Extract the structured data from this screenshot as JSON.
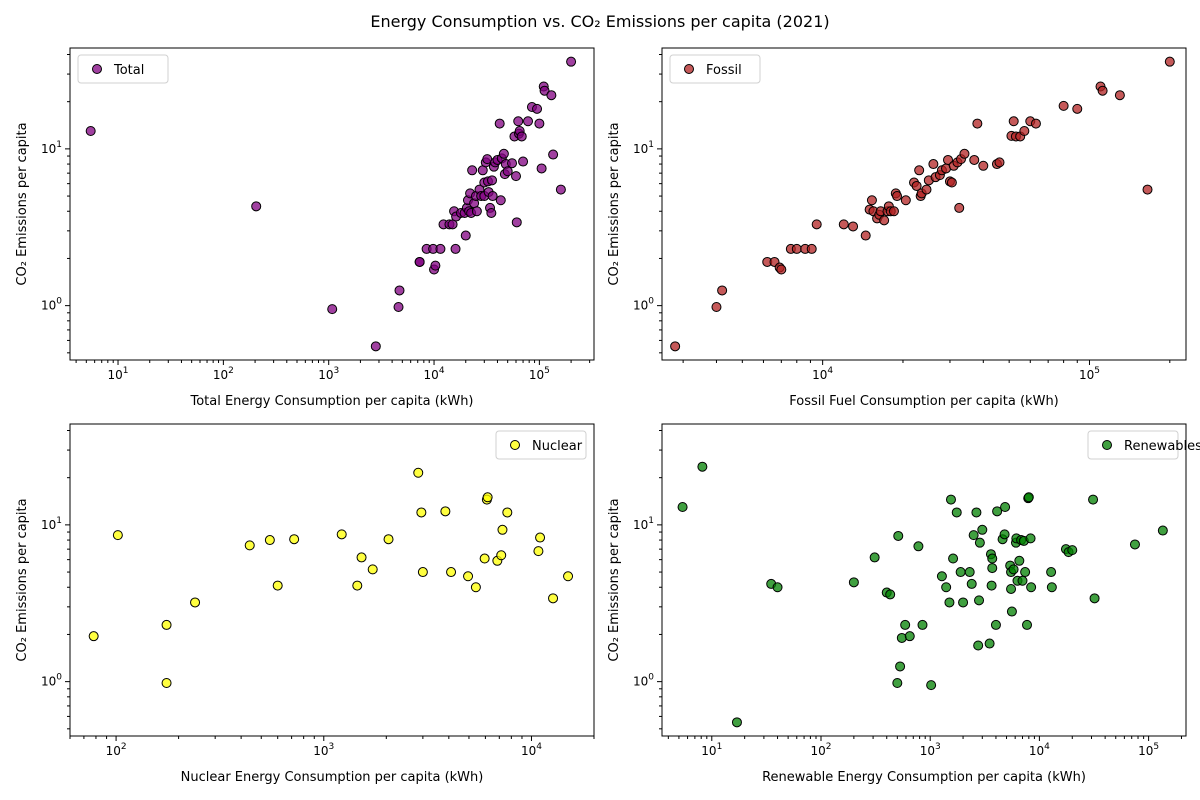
{
  "figure": {
    "suptitle": "Energy Consumption vs. CO₂ Emissions per capita (2021)"
  },
  "chart_data": [
    {
      "type": "scatter",
      "name": "Total",
      "color": "#800080",
      "xlabel": "Total Energy Consumption per capita (kWh)",
      "ylabel": "CO₂ Emissions per capita",
      "xscale": "log",
      "yscale": "log",
      "xlim": [
        3.5,
        330000
      ],
      "ylim": [
        0.45,
        44
      ],
      "legend": "upper left",
      "xticks": [
        10,
        100,
        1000,
        10000,
        100000
      ],
      "yticks": [
        1,
        10
      ],
      "points": [
        [
          5.5,
          13
        ],
        [
          205,
          4.3
        ],
        [
          1080,
          0.95
        ],
        [
          2800,
          0.55
        ],
        [
          4700,
          1.25
        ],
        [
          4600,
          0.98
        ],
        [
          7300,
          1.9
        ],
        [
          7300,
          1.9
        ],
        [
          8500,
          2.3
        ],
        [
          9800,
          2.3
        ],
        [
          10000,
          1.7
        ],
        [
          10300,
          1.8
        ],
        [
          11500,
          2.3
        ],
        [
          12300,
          3.3
        ],
        [
          14000,
          3.3
        ],
        [
          15000,
          3.3
        ],
        [
          15500,
          4
        ],
        [
          16000,
          2.3
        ],
        [
          16200,
          3.7
        ],
        [
          18000,
          3.9
        ],
        [
          19500,
          3.9
        ],
        [
          20000,
          2.8
        ],
        [
          20500,
          4.2
        ],
        [
          21000,
          4.7
        ],
        [
          21500,
          4
        ],
        [
          22000,
          5.2
        ],
        [
          22500,
          3.9
        ],
        [
          23000,
          7.3
        ],
        [
          24000,
          4.5
        ],
        [
          25000,
          5
        ],
        [
          25500,
          4
        ],
        [
          27000,
          5.5
        ],
        [
          28000,
          5
        ],
        [
          29000,
          7.3
        ],
        [
          30000,
          6.1
        ],
        [
          30000,
          5
        ],
        [
          31000,
          8.2
        ],
        [
          32000,
          8.6
        ],
        [
          32500,
          6.2
        ],
        [
          33000,
          5.3
        ],
        [
          34000,
          4.2
        ],
        [
          35000,
          3.9
        ],
        [
          35500,
          6.3
        ],
        [
          36000,
          5
        ],
        [
          37000,
          7.7
        ],
        [
          38000,
          8.2
        ],
        [
          40000,
          8.5
        ],
        [
          42000,
          14.5
        ],
        [
          43000,
          4.7
        ],
        [
          44000,
          8.7
        ],
        [
          46000,
          9.3
        ],
        [
          47000,
          6.9
        ],
        [
          48000,
          8
        ],
        [
          50000,
          7.2
        ],
        [
          55000,
          8.1
        ],
        [
          58000,
          12
        ],
        [
          60000,
          6.7
        ],
        [
          61000,
          3.4
        ],
        [
          63000,
          15
        ],
        [
          64000,
          12.5
        ],
        [
          65000,
          13
        ],
        [
          68000,
          12
        ],
        [
          70000,
          8.3
        ],
        [
          78000,
          15
        ],
        [
          85000,
          18.5
        ],
        [
          95000,
          18
        ],
        [
          100000,
          14.5
        ],
        [
          105000,
          7.5
        ],
        [
          110000,
          25
        ],
        [
          112000,
          23.5
        ],
        [
          130000,
          22
        ],
        [
          135000,
          9.2
        ],
        [
          160000,
          5.5
        ],
        [
          200000,
          36
        ]
      ]
    },
    {
      "type": "scatter",
      "name": "Fossil",
      "color": "#b22222",
      "xlabel": "Fossil Fuel Consumption per capita (kWh)",
      "ylabel": "CO₂ Emissions per capita",
      "xscale": "log",
      "yscale": "log",
      "xlim": [
        2500,
        230000
      ],
      "ylim": [
        0.45,
        44
      ],
      "legend": "upper left",
      "xticks": [
        10000,
        100000
      ],
      "yticks": [
        1,
        10
      ],
      "points": [
        [
          2800,
          0.55
        ],
        [
          4000,
          0.98
        ],
        [
          4200,
          1.25
        ],
        [
          6200,
          1.9
        ],
        [
          6600,
          1.9
        ],
        [
          6900,
          1.75
        ],
        [
          7000,
          1.7
        ],
        [
          7600,
          2.3
        ],
        [
          8000,
          2.3
        ],
        [
          8600,
          2.3
        ],
        [
          9100,
          2.3
        ],
        [
          9500,
          3.3
        ],
        [
          12000,
          3.3
        ],
        [
          13000,
          3.2
        ],
        [
          14500,
          2.8
        ],
        [
          15000,
          4.1
        ],
        [
          15300,
          4.7
        ],
        [
          15500,
          4
        ],
        [
          16000,
          3.6
        ],
        [
          16300,
          3.8
        ],
        [
          16500,
          4
        ],
        [
          17000,
          3.5
        ],
        [
          17500,
          4
        ],
        [
          17700,
          4.3
        ],
        [
          18000,
          4
        ],
        [
          18500,
          4
        ],
        [
          18800,
          5.2
        ],
        [
          19000,
          5
        ],
        [
          20500,
          4.7
        ],
        [
          22000,
          6.1
        ],
        [
          22500,
          5.8
        ],
        [
          23000,
          7.3
        ],
        [
          23300,
          5
        ],
        [
          23500,
          5.2
        ],
        [
          24500,
          5.5
        ],
        [
          25000,
          6.3
        ],
        [
          26000,
          8
        ],
        [
          26500,
          6.6
        ],
        [
          27500,
          6.8
        ],
        [
          28000,
          7.3
        ],
        [
          29000,
          7.5
        ],
        [
          29500,
          8.5
        ],
        [
          30000,
          6.2
        ],
        [
          30500,
          6.1
        ],
        [
          31000,
          7.8
        ],
        [
          32000,
          8.2
        ],
        [
          32500,
          4.2
        ],
        [
          33000,
          8.6
        ],
        [
          34000,
          9.3
        ],
        [
          37000,
          8.5
        ],
        [
          38000,
          14.5
        ],
        [
          40000,
          7.8
        ],
        [
          45000,
          8
        ],
        [
          46000,
          8.2
        ],
        [
          51000,
          12.1
        ],
        [
          52000,
          15
        ],
        [
          53000,
          12
        ],
        [
          55000,
          12
        ],
        [
          57000,
          13
        ],
        [
          60000,
          15
        ],
        [
          63000,
          14.5
        ],
        [
          80000,
          18.8
        ],
        [
          90000,
          18
        ],
        [
          110000,
          25
        ],
        [
          112000,
          23.5
        ],
        [
          130000,
          22
        ],
        [
          165000,
          5.5
        ],
        [
          200000,
          36
        ]
      ]
    },
    {
      "type": "scatter",
      "name": "Nuclear",
      "color": "#ffff00",
      "xlabel": "Nuclear Energy Consumption per capita (kWh)",
      "ylabel": "CO₂ Emissions per capita",
      "xscale": "log",
      "yscale": "log",
      "xlim": [
        60,
        20000
      ],
      "ylim": [
        0.45,
        44
      ],
      "legend": "upper right",
      "xticks": [
        100,
        1000,
        10000
      ],
      "yticks": [
        1,
        10
      ],
      "points": [
        [
          78,
          1.95
        ],
        [
          102,
          8.6
        ],
        [
          175,
          2.3
        ],
        [
          175,
          0.98
        ],
        [
          240,
          3.2
        ],
        [
          440,
          7.4
        ],
        [
          550,
          8
        ],
        [
          600,
          4.1
        ],
        [
          720,
          8.1
        ],
        [
          1220,
          8.7
        ],
        [
          1450,
          4.1
        ],
        [
          1520,
          6.2
        ],
        [
          1720,
          5.2
        ],
        [
          2050,
          8.1
        ],
        [
          2850,
          21.5
        ],
        [
          2950,
          12
        ],
        [
          3000,
          5
        ],
        [
          3850,
          12.2
        ],
        [
          4100,
          5
        ],
        [
          4950,
          4.7
        ],
        [
          5400,
          4
        ],
        [
          5950,
          6.1
        ],
        [
          6100,
          14.5
        ],
        [
          6150,
          15
        ],
        [
          6850,
          5.9
        ],
        [
          7150,
          6.4
        ],
        [
          7250,
          9.3
        ],
        [
          7650,
          12
        ],
        [
          10800,
          6.8
        ],
        [
          11000,
          8.3
        ],
        [
          12700,
          3.4
        ],
        [
          15000,
          4.7
        ]
      ]
    },
    {
      "type": "scatter",
      "name": "Renewables",
      "color": "#008000",
      "xlabel": "Renewable Energy Consumption per capita (kWh)",
      "ylabel": "CO₂ Emissions per capita",
      "xscale": "log",
      "yscale": "log",
      "xlim": [
        3.5,
        220000
      ],
      "ylim": [
        0.45,
        44
      ],
      "legend": "upper right",
      "xticks": [
        10,
        100,
        1000,
        10000,
        100000
      ],
      "yticks": [
        1,
        10
      ],
      "points": [
        [
          5.4,
          13
        ],
        [
          8.2,
          23.5
        ],
        [
          17,
          0.55
        ],
        [
          35,
          4.2
        ],
        [
          40,
          4
        ],
        [
          200,
          4.3
        ],
        [
          310,
          6.2
        ],
        [
          400,
          3.7
        ],
        [
          430,
          3.6
        ],
        [
          500,
          0.98
        ],
        [
          510,
          8.5
        ],
        [
          530,
          1.25
        ],
        [
          550,
          1.9
        ],
        [
          590,
          2.3
        ],
        [
          650,
          1.95
        ],
        [
          780,
          7.3
        ],
        [
          850,
          2.3
        ],
        [
          1020,
          0.95
        ],
        [
          1280,
          4.7
        ],
        [
          1400,
          4
        ],
        [
          1500,
          3.2
        ],
        [
          1550,
          14.5
        ],
        [
          1620,
          6.1
        ],
        [
          1750,
          12
        ],
        [
          1900,
          5
        ],
        [
          2000,
          3.2
        ],
        [
          2300,
          5
        ],
        [
          2400,
          4.2
        ],
        [
          2500,
          8.6
        ],
        [
          2650,
          12
        ],
        [
          2750,
          1.7
        ],
        [
          2800,
          3.3
        ],
        [
          2850,
          7.7
        ],
        [
          3000,
          9.3
        ],
        [
          3500,
          1.75
        ],
        [
          3600,
          6.5
        ],
        [
          3650,
          4.1
        ],
        [
          3700,
          6.1
        ],
        [
          3700,
          5.3
        ],
        [
          4000,
          2.3
        ],
        [
          4100,
          12.2
        ],
        [
          4600,
          8.1
        ],
        [
          4800,
          8.7
        ],
        [
          4850,
          13
        ],
        [
          5400,
          5.5
        ],
        [
          5500,
          3.9
        ],
        [
          5500,
          5
        ],
        [
          5600,
          2.8
        ],
        [
          5800,
          5.2
        ],
        [
          6100,
          7.7
        ],
        [
          6150,
          8.2
        ],
        [
          6300,
          4.4
        ],
        [
          6550,
          5.9
        ],
        [
          6800,
          8
        ],
        [
          7000,
          4.4
        ],
        [
          7200,
          7.9
        ],
        [
          7400,
          5
        ],
        [
          7700,
          2.3
        ],
        [
          7900,
          14.8
        ],
        [
          8000,
          15
        ],
        [
          8300,
          8.2
        ],
        [
          8400,
          4
        ],
        [
          12800,
          5
        ],
        [
          13000,
          4
        ],
        [
          17500,
          7
        ],
        [
          18500,
          6.7
        ],
        [
          20000,
          6.9
        ],
        [
          31000,
          14.5
        ],
        [
          32000,
          3.4
        ],
        [
          75000,
          7.5
        ],
        [
          135000,
          9.2
        ]
      ]
    }
  ]
}
